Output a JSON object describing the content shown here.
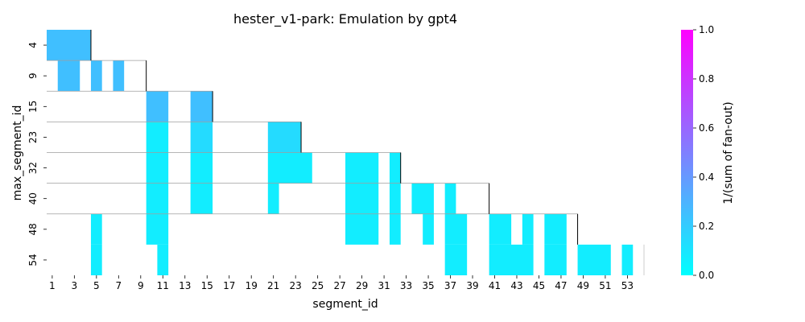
{
  "chart_data": {
    "type": "heatmap",
    "title": "hester_v1-park: Emulation by gpt4",
    "xlabel": "segment_id",
    "ylabel": "max_segment_id",
    "x_ticks": [
      "1",
      "3",
      "5",
      "7",
      "9",
      "11",
      "13",
      "15",
      "17",
      "19",
      "21",
      "23",
      "25",
      "27",
      "29",
      "31",
      "33",
      "35",
      "37",
      "39",
      "41",
      "43",
      "45",
      "47",
      "49",
      "51",
      "53"
    ],
    "y_ticks": [
      "4",
      "9",
      "15",
      "23",
      "32",
      "40",
      "48",
      "54"
    ],
    "x_range": [
      1,
      54
    ],
    "rows": 8,
    "colorbar": {
      "label": "1/(sum of fan-out)",
      "range": [
        0.0,
        1.0
      ],
      "ticks": [
        "0.0",
        "0.2",
        "0.4",
        "0.6",
        "0.8",
        "1.0"
      ],
      "colormap": "cool",
      "color_low": "#00ffff",
      "color_high": "#ff00ff"
    },
    "cells": [
      {
        "row": 0,
        "x_from": 1,
        "x_to": 4,
        "value": 0.25
      },
      {
        "row": 1,
        "x_from": 2,
        "x_to": 3,
        "value": 0.25
      },
      {
        "row": 1,
        "x_from": 5,
        "x_to": 5,
        "value": 0.25
      },
      {
        "row": 1,
        "x_from": 7,
        "x_to": 7,
        "value": 0.25
      },
      {
        "row": 2,
        "x_from": 10,
        "x_to": 11,
        "value": 0.25
      },
      {
        "row": 2,
        "x_from": 14,
        "x_to": 15,
        "value": 0.25
      },
      {
        "row": 3,
        "x_from": 10,
        "x_to": 11,
        "value": 0.07
      },
      {
        "row": 3,
        "x_from": 14,
        "x_to": 15,
        "value": 0.14
      },
      {
        "row": 3,
        "x_from": 21,
        "x_to": 23,
        "value": 0.14
      },
      {
        "row": 4,
        "x_from": 10,
        "x_to": 11,
        "value": 0.07
      },
      {
        "row": 4,
        "x_from": 14,
        "x_to": 15,
        "value": 0.07
      },
      {
        "row": 4,
        "x_from": 21,
        "x_to": 24,
        "value": 0.07
      },
      {
        "row": 4,
        "x_from": 28,
        "x_to": 30,
        "value": 0.07
      },
      {
        "row": 4,
        "x_from": 32,
        "x_to": 32,
        "value": 0.07
      },
      {
        "row": 5,
        "x_from": 10,
        "x_to": 11,
        "value": 0.07
      },
      {
        "row": 5,
        "x_from": 14,
        "x_to": 15,
        "value": 0.07
      },
      {
        "row": 5,
        "x_from": 21,
        "x_to": 21,
        "value": 0.07
      },
      {
        "row": 5,
        "x_from": 28,
        "x_to": 30,
        "value": 0.07
      },
      {
        "row": 5,
        "x_from": 32,
        "x_to": 32,
        "value": 0.07
      },
      {
        "row": 5,
        "x_from": 34,
        "x_to": 35,
        "value": 0.07
      },
      {
        "row": 5,
        "x_from": 37,
        "x_to": 37,
        "value": 0.07
      },
      {
        "row": 6,
        "x_from": 5,
        "x_to": 5,
        "value": 0.07
      },
      {
        "row": 6,
        "x_from": 10,
        "x_to": 11,
        "value": 0.07
      },
      {
        "row": 6,
        "x_from": 28,
        "x_to": 30,
        "value": 0.07
      },
      {
        "row": 6,
        "x_from": 32,
        "x_to": 32,
        "value": 0.07
      },
      {
        "row": 6,
        "x_from": 35,
        "x_to": 35,
        "value": 0.07
      },
      {
        "row": 6,
        "x_from": 37,
        "x_to": 38,
        "value": 0.07
      },
      {
        "row": 6,
        "x_from": 41,
        "x_to": 42,
        "value": 0.07
      },
      {
        "row": 6,
        "x_from": 44,
        "x_to": 44,
        "value": 0.07
      },
      {
        "row": 6,
        "x_from": 46,
        "x_to": 47,
        "value": 0.07
      },
      {
        "row": 7,
        "x_from": 5,
        "x_to": 5,
        "value": 0.07
      },
      {
        "row": 7,
        "x_from": 11,
        "x_to": 11,
        "value": 0.07
      },
      {
        "row": 7,
        "x_from": 37,
        "x_to": 38,
        "value": 0.07
      },
      {
        "row": 7,
        "x_from": 41,
        "x_to": 44,
        "value": 0.07
      },
      {
        "row": 7,
        "x_from": 46,
        "x_to": 47,
        "value": 0.07
      },
      {
        "row": 7,
        "x_from": 49,
        "x_to": 51,
        "value": 0.07
      },
      {
        "row": 7,
        "x_from": 53,
        "x_to": 53,
        "value": 0.07
      }
    ],
    "row_boundaries": [
      {
        "boundary": 1,
        "x_end": 9
      },
      {
        "boundary": 2,
        "x_end": 15
      },
      {
        "boundary": 3,
        "x_end": 23
      },
      {
        "boundary": 4,
        "x_end": 32
      },
      {
        "boundary": 5,
        "x_end": 40
      },
      {
        "boundary": 6,
        "x_end": 48
      }
    ],
    "group_markers": [
      {
        "x_after": 4,
        "row_from": 0,
        "row_to": 0
      },
      {
        "x_after": 9,
        "row_from": 1,
        "row_to": 1
      },
      {
        "x_after": 15,
        "row_from": 2,
        "row_to": 2
      },
      {
        "x_after": 23,
        "row_from": 3,
        "row_to": 3
      },
      {
        "x_after": 32,
        "row_from": 4,
        "row_to": 4
      },
      {
        "x_after": 40,
        "row_from": 5,
        "row_to": 5
      },
      {
        "x_after": 48,
        "row_from": 6,
        "row_to": 6
      }
    ]
  }
}
